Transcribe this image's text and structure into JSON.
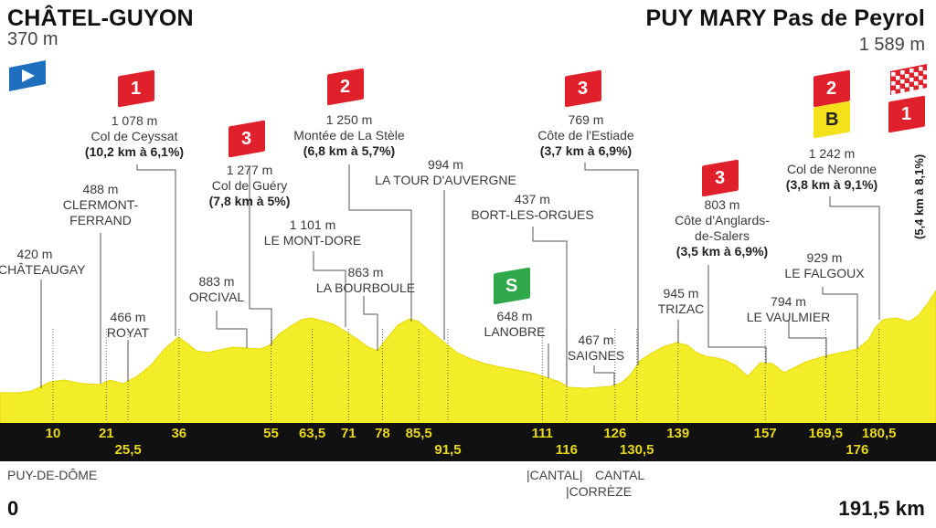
{
  "start": {
    "name": "CHÂTEL-GUYON",
    "altitude": "370 m"
  },
  "finish": {
    "name": "PUY MARY Pas de Peyrol",
    "altitude": "1 589 m"
  },
  "distance_start": "0",
  "distance_end": "191,5 km",
  "badges": {
    "ceyssat": "1",
    "guery": "3",
    "stele": "2",
    "estiade": "3",
    "sprint": "S",
    "anglards": "3",
    "neronne": "2",
    "bonus": "B",
    "puy_mary": "1"
  },
  "climbs": {
    "ceyssat": {
      "alt": "1 078 m",
      "name": "Col de Ceyssat",
      "detail": "(10,2 km à 6,1%)"
    },
    "guery": {
      "alt": "1 277 m",
      "name": "Col de Guéry",
      "detail": "(7,8 km à 5%)"
    },
    "stele": {
      "alt": "1 250 m",
      "name": "Montée de La Stèle",
      "detail": "(6,8 km à 5,7%)"
    },
    "estiade": {
      "alt": "769 m",
      "name": "Côte de l'Estiade",
      "detail": "(3,7 km à 6,9%)"
    },
    "anglards": {
      "alt": "803 m",
      "name1": "Côte d'Anglards-",
      "name2": "de-Salers",
      "detail": "(3,5 km à 6,9%)"
    },
    "neronne": {
      "alt": "1 242 m",
      "name": "Col de Neronne",
      "detail": "(3,8 km à 9,1%)"
    },
    "puy_mary_detail": "(5,4 km à 8,1%)"
  },
  "places": {
    "chateaugay": {
      "alt": "420 m",
      "name": "CHÂTEAUGAY"
    },
    "clermont": {
      "alt": "488 m",
      "name1": "CLERMONT-",
      "name2": "FERRAND"
    },
    "royat": {
      "alt": "466 m",
      "name": "ROYAT"
    },
    "orcival": {
      "alt": "883 m",
      "name": "ORCIVAL"
    },
    "mont_dore": {
      "alt": "1 101 m",
      "name": "LE MONT-DORE"
    },
    "bourboule": {
      "alt": "863 m",
      "name": "LA BOURBOULE"
    },
    "tour_auvergne": {
      "alt": "994 m",
      "name": "LA TOUR D'AUVERGNE"
    },
    "bort": {
      "alt": "437 m",
      "name": "BORT-LES-ORGUES"
    },
    "lanobre": {
      "alt": "648 m",
      "name": "LANOBRE"
    },
    "saignes": {
      "alt": "467 m",
      "name": "SAIGNES"
    },
    "trizac": {
      "alt": "945 m",
      "name": "TRIZAC"
    },
    "vaulmier": {
      "alt": "794 m",
      "name": "LE VAULMIER"
    },
    "falgoux": {
      "alt": "929 m",
      "name": "LE FALGOUX"
    }
  },
  "km_markers": [
    "10",
    "21",
    "25,5",
    "36",
    "55",
    "63,5",
    "71",
    "78",
    "85,5",
    "91,5",
    "111",
    "116",
    "126",
    "130,5",
    "139",
    "157",
    "169,5",
    "176",
    "180,5"
  ],
  "regions": {
    "puy_de_dome": "PUY-DE-DÔME",
    "cantal_a": "|CANTAL|",
    "cantal_b": "CANTAL",
    "correze": "|CORRÈZE"
  },
  "colors": {
    "profile": "#f4ee2a",
    "profile_edge": "#e6d800",
    "bar": "#111111",
    "km": "#e9d816",
    "climb_red": "#e0212b",
    "sprint_green": "#2fa84a",
    "bonus_yellow": "#f4e11b",
    "start_blue": "#1f6fbf"
  }
}
